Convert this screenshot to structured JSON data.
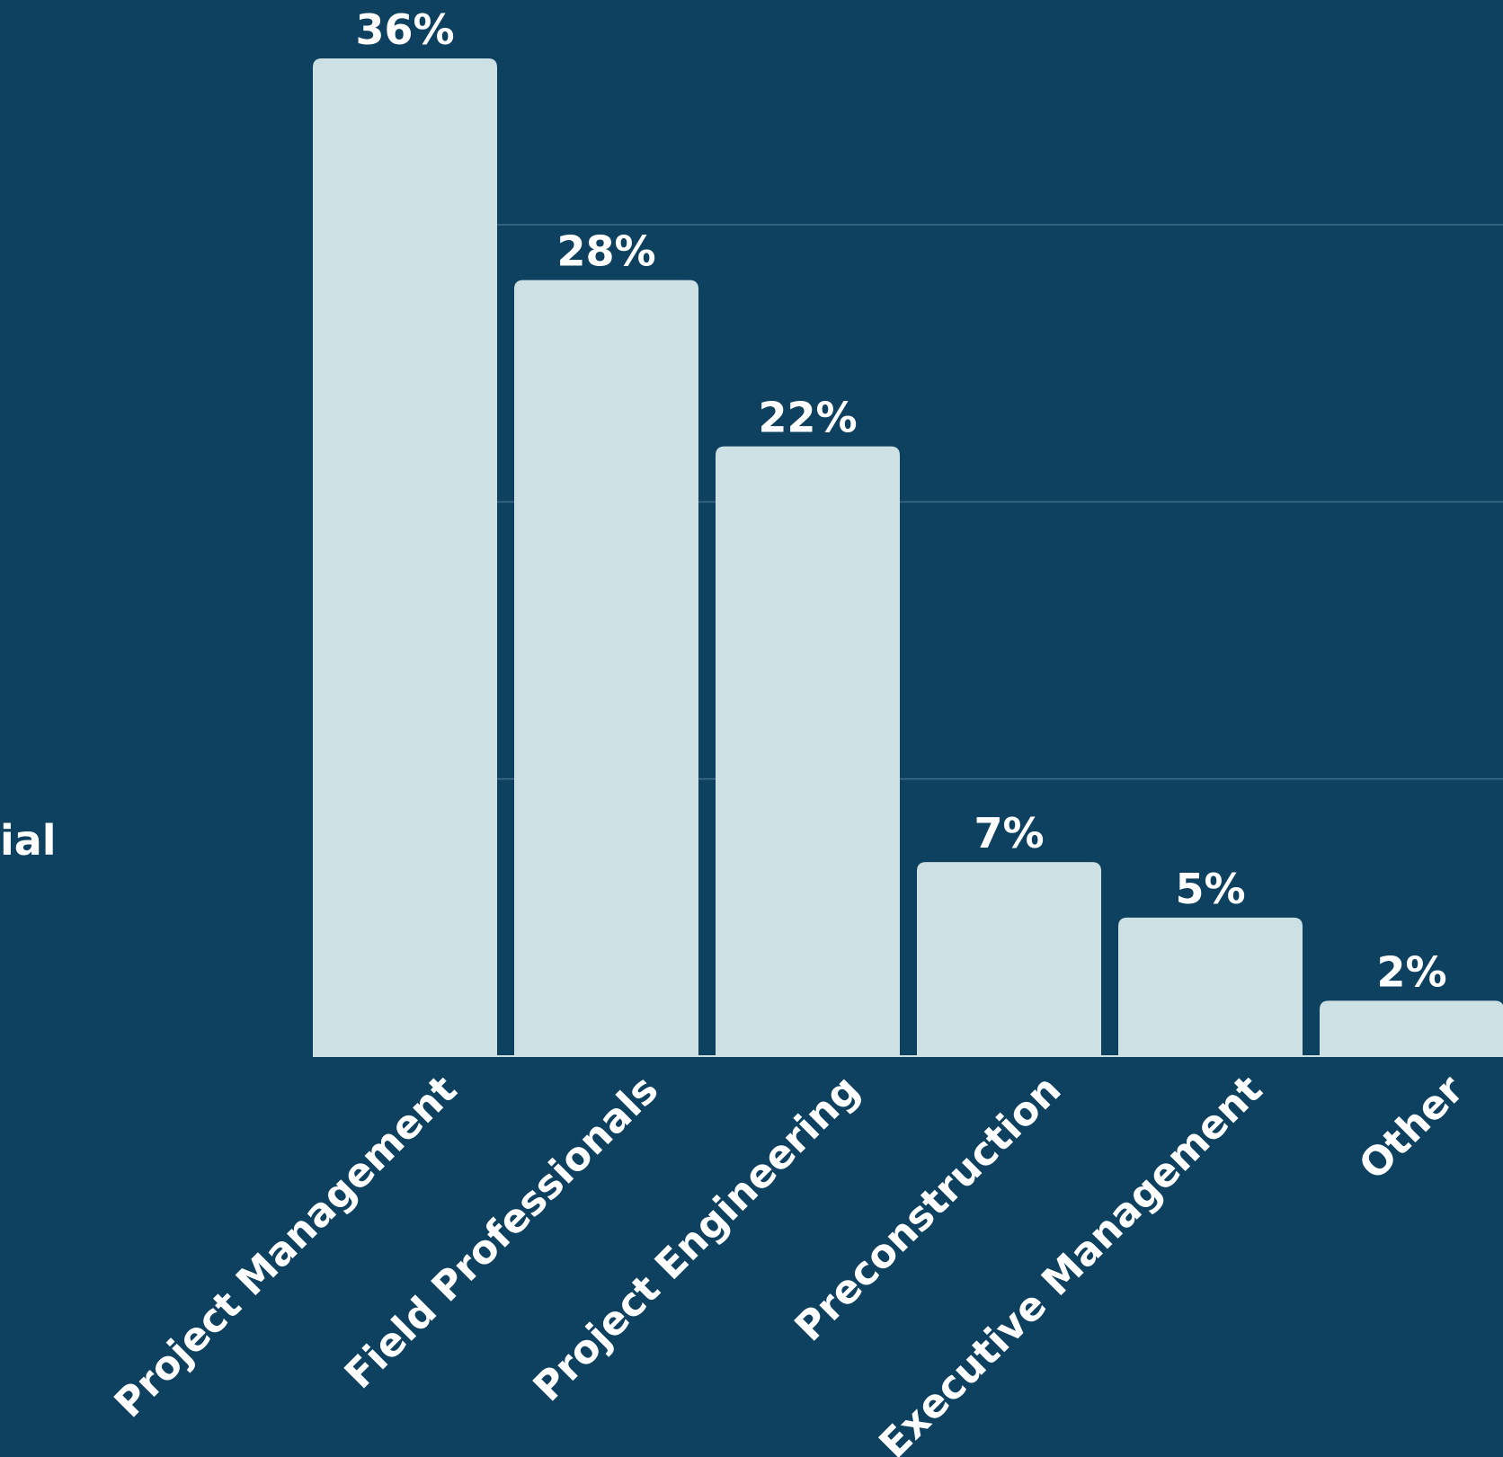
{
  "side_label": "ial",
  "colors": {
    "background": "#0e4160",
    "bar": "#cde0e4",
    "text": "#ffffff",
    "grid": "#3f6d87"
  },
  "chart_data": {
    "type": "bar",
    "categories": [
      "Project Management",
      "Field Professionals",
      "Project Engineering",
      "Preconstruction",
      "Executive Management",
      "Other"
    ],
    "values": [
      36,
      28,
      22,
      7,
      5,
      2
    ],
    "data_labels": [
      "36%",
      "28%",
      "22%",
      "7%",
      "5%",
      "2%"
    ],
    "title": "",
    "xlabel": "",
    "ylabel": "",
    "ylim": [
      0,
      36
    ],
    "gridlines": [
      10,
      20,
      30
    ],
    "grid": true,
    "legend": "none"
  }
}
